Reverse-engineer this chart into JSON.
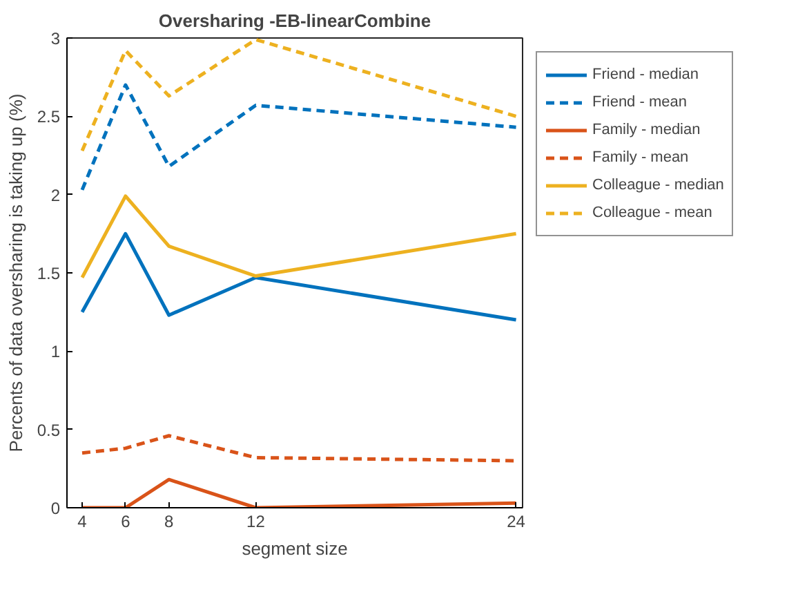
{
  "chart_data": {
    "type": "line",
    "title": "Oversharing -EB-linearCombine",
    "xlabel": "segment size",
    "ylabel": "Percents of data oversharing is taking up (%)",
    "x": [
      4,
      6,
      8,
      12,
      24
    ],
    "xlim": [
      3.3,
      24.3
    ],
    "xticks": [
      4,
      6,
      8,
      12,
      24
    ],
    "ylim": [
      0,
      3
    ],
    "yticks": [
      0,
      0.5,
      1,
      1.5,
      2,
      2.5,
      3
    ],
    "grid": false,
    "legend": "right",
    "marker": "none",
    "series": [
      {
        "name": "Friend - median",
        "color": "#0072bd",
        "line_style": "solid",
        "values": [
          1.25,
          1.75,
          1.23,
          1.47,
          1.2
        ]
      },
      {
        "name": "Friend - mean",
        "color": "#0072bd",
        "line_style": "dashed",
        "values": [
          2.03,
          2.7,
          2.18,
          2.57,
          2.43
        ]
      },
      {
        "name": "Family - median",
        "color": "#d95319",
        "line_style": "solid",
        "values": [
          0,
          0,
          0.18,
          0,
          0.03
        ]
      },
      {
        "name": "Family - mean",
        "color": "#d95319",
        "line_style": "dashed",
        "values": [
          0.35,
          0.38,
          0.46,
          0.32,
          0.3
        ]
      },
      {
        "name": "Colleague - median",
        "color": "#edb120",
        "line_style": "solid",
        "values": [
          1.47,
          1.99,
          1.67,
          1.48,
          1.75
        ]
      },
      {
        "name": "Colleague - mean",
        "color": "#edb120",
        "line_style": "dashed",
        "values": [
          2.28,
          2.92,
          2.63,
          2.99,
          2.5
        ]
      }
    ]
  }
}
